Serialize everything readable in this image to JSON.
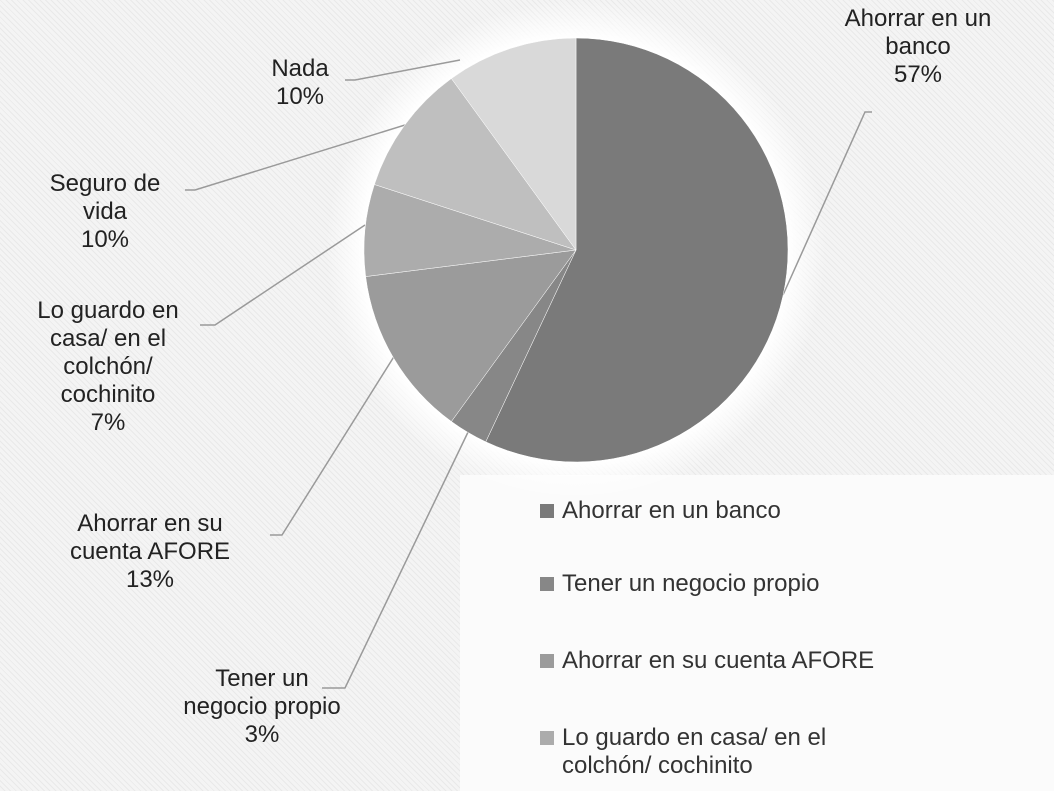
{
  "chart_data": {
    "type": "pie",
    "categories": [
      "Ahorrar en un banco",
      "Tener un negocio propio",
      "Ahorrar en su cuenta AFORE",
      "Lo guardo en casa/ en el colchón/ cochinito",
      "Seguro de vida",
      "Nada"
    ],
    "values": [
      57,
      3,
      13,
      7,
      10,
      10
    ],
    "value_labels": [
      "57%",
      "3%",
      "13%",
      "7%",
      "10%",
      "10%"
    ],
    "colors": [
      "#7a7a7a",
      "#878787",
      "#9b9b9b",
      "#acacac",
      "#bfbfbf",
      "#d9d9d9"
    ],
    "legend": "bottom-right"
  }
}
